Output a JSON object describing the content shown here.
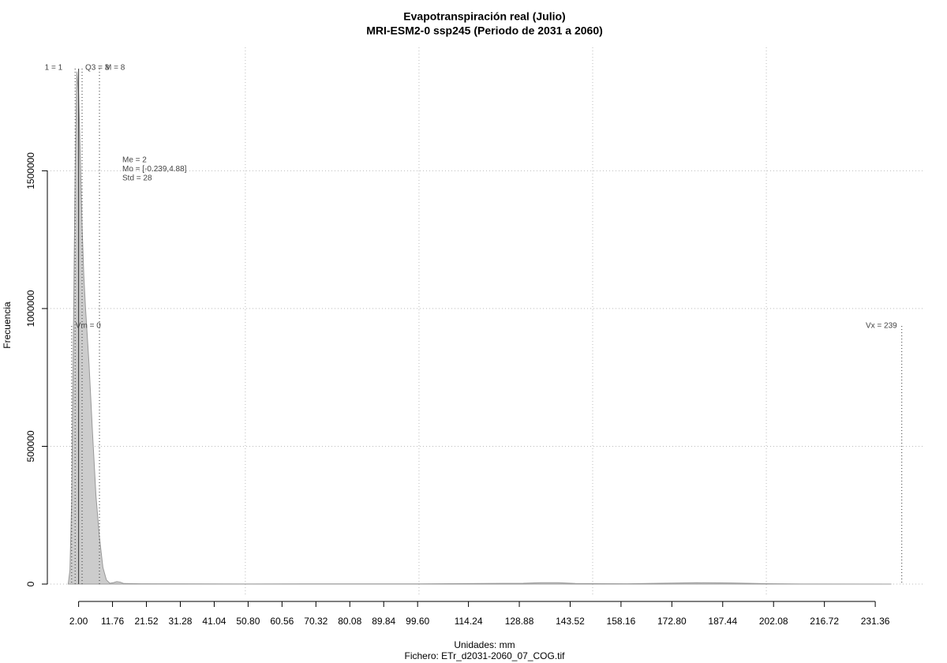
{
  "chart_data": {
    "type": "area",
    "title": "Evapotranspiración real (Julio)",
    "subtitle": "MRI-ESM2-0 ssp245 (Periodo de 2031 a 2060)",
    "x_label": "Unidades: mm",
    "caption": "Fichero: ETr_d2031-2060_07_COG.tif",
    "y_label": "Frecuencia",
    "x": [
      -1.0,
      -0.5,
      0,
      0.5,
      1.0,
      1.5,
      2.0,
      2.5,
      3.0,
      3.5,
      4.0,
      5.0,
      6.0,
      7.0,
      8.0,
      9.0,
      10,
      11,
      12,
      13,
      14,
      15,
      20,
      50,
      100,
      130,
      135,
      140,
      145,
      160,
      175,
      180,
      190,
      200,
      210,
      236
    ],
    "values": [
      0,
      50000,
      300000,
      900000,
      1500000,
      1860000,
      1780000,
      1550000,
      1300000,
      1120000,
      1000000,
      800000,
      550000,
      320000,
      170000,
      60000,
      15000,
      3000,
      5000,
      9000,
      7000,
      2000,
      1000,
      500,
      800,
      3000,
      5000,
      5000,
      2000,
      1000,
      4000,
      5000,
      4000,
      1500,
      500,
      0
    ],
    "color": "#cccccc",
    "line_color": "#999999",
    "xlim": [
      -7,
      245.2
    ],
    "ylim": [
      -63000,
      1948000
    ],
    "xticks": [
      {
        "value": 2.0,
        "label": "2.00"
      },
      {
        "value": 11.76,
        "label": "11.76"
      },
      {
        "value": 21.52,
        "label": "21.52"
      },
      {
        "value": 31.28,
        "label": "31.28"
      },
      {
        "value": 41.04,
        "label": "41.04"
      },
      {
        "value": 50.8,
        "label": "50.80"
      },
      {
        "value": 60.56,
        "label": "60.56"
      },
      {
        "value": 70.32,
        "label": "70.32"
      },
      {
        "value": 80.08,
        "label": "80.08"
      },
      {
        "value": 89.84,
        "label": "89.84"
      },
      {
        "value": 99.6,
        "label": "99.60"
      },
      {
        "value": 114.24,
        "label": "114.24"
      },
      {
        "value": 128.88,
        "label": "128.88"
      },
      {
        "value": 143.52,
        "label": "143.52"
      },
      {
        "value": 158.16,
        "label": "158.16"
      },
      {
        "value": 172.8,
        "label": "172.80"
      },
      {
        "value": 187.44,
        "label": "187.44"
      },
      {
        "value": 202.08,
        "label": "202.08"
      },
      {
        "value": 216.72,
        "label": "216.72"
      },
      {
        "value": 231.36,
        "label": "231.36"
      }
    ],
    "yticks": [
      0,
      500000,
      1000000,
      1500000
    ],
    "xgrid": [
      50,
      100,
      150,
      200
    ],
    "grid": true,
    "quantile_lines": [
      {
        "label": "1 = 1",
        "x": 1
      },
      {
        "label": "Q3 = 3",
        "x": 3
      },
      {
        "label": "M = 8",
        "x": 8
      }
    ],
    "median": 2,
    "range_lines": [
      {
        "label": "Vm = 0",
        "x": 0
      },
      {
        "label": "Vx = 239",
        "x": 239
      }
    ],
    "stats": [
      "Me = 2",
      "Mo = [-0.239,4.88]",
      "Std = 28"
    ]
  }
}
